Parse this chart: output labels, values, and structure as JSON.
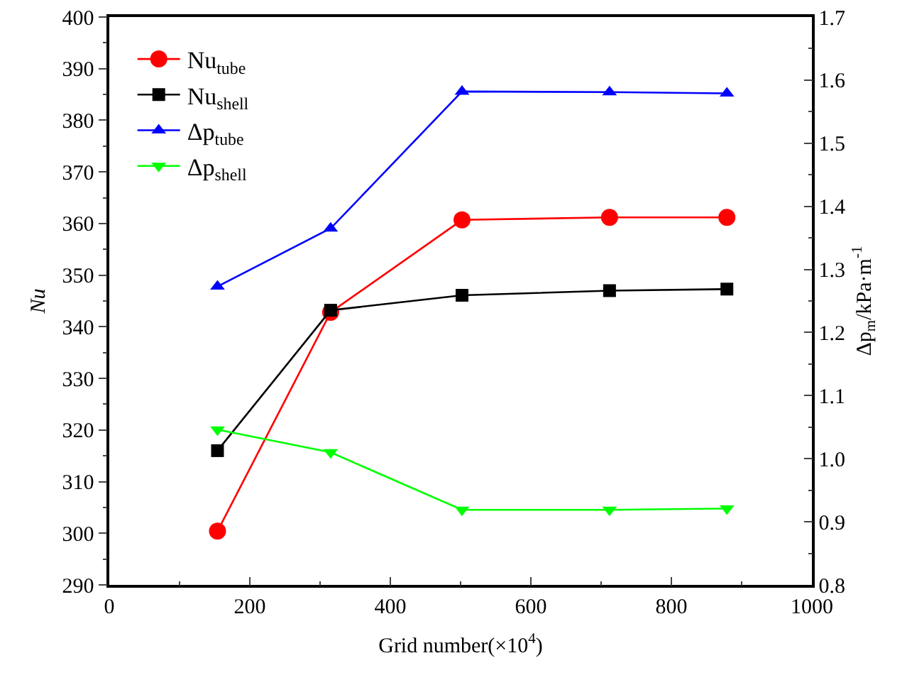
{
  "chart_data": {
    "type": "line",
    "xlabel": "Grid number(×10$^{4}$)",
    "ylabel": "Nu",
    "y2label": "Δp$_{m}$/kPa·m$^{-1}$",
    "x": [
      154,
      315,
      502,
      712,
      879
    ],
    "series": [
      {
        "name": "Nu$_{tube}$",
        "color": "#ff0000",
        "marker": "circle",
        "values": [
          300.4,
          342.8,
          360.7,
          361.2,
          361.2
        ]
      },
      {
        "name": "Nu$_{shell}$",
        "color": "#000000",
        "marker": "square",
        "values": [
          316.0,
          343.2,
          346.1,
          347.0,
          347.3
        ]
      },
      {
        "name": "Δp$_{tube}$",
        "color": "#0000ff",
        "marker": "triangle",
        "axis": "y2",
        "values": [
          1.273,
          1.365,
          1.582,
          1.581,
          1.579
        ]
      },
      {
        "name": "Δp$_{shell}$",
        "color": "#00ff00",
        "marker": "triangle-down",
        "axis": "y2",
        "values": [
          1.046,
          1.01,
          0.919,
          0.919,
          0.921
        ]
      }
    ],
    "xlim": [
      0,
      1000
    ],
    "xticks": [
      0,
      200,
      400,
      600,
      800,
      1000
    ],
    "ylim": [
      290,
      400
    ],
    "yticks": [
      290,
      300,
      310,
      320,
      330,
      340,
      350,
      360,
      370,
      380,
      390,
      400
    ],
    "y2lim": [
      0.8,
      1.7
    ],
    "y2ticks": [
      0.8,
      0.9,
      {
        "value": 1,
        "label": "1.0"
      },
      1.1,
      1.2,
      1.3,
      1.4,
      1.5,
      1.6,
      1.7
    ],
    "grid": false,
    "legend": "top left",
    "line_style": "solid"
  }
}
